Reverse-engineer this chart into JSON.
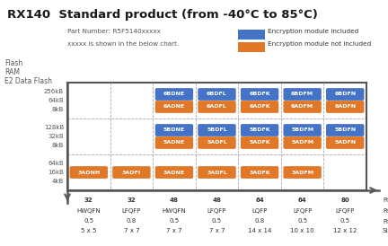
{
  "title": "RX140  Standard product (from -40°C to 85°C)",
  "part_number_line1": "Part Number: R5F5140xxxxx",
  "part_number_line2": "xxxxx is shown in the below chart.",
  "legend_blue_text": "Encryption module included",
  "legend_orange_text": "Encryption module not included",
  "blue_color": "#4472C4",
  "orange_color": "#E07828",
  "bg_color": "#FFFFFF",
  "grid_color": "#AAAAAA",
  "row_labels": [
    [
      "256kB",
      "64kB",
      "8kB"
    ],
    [
      "128kB",
      "32kB",
      "8kB"
    ],
    [
      "64kB",
      "16kB",
      "4kB"
    ]
  ],
  "col_labels": [
    {
      "pins": "32",
      "pkg": "HWQFN",
      "pitch": "0.5",
      "size": "5 x 5"
    },
    {
      "pins": "32",
      "pkg": "LFQFP",
      "pitch": "0.8",
      "size": "7 x 7"
    },
    {
      "pins": "48",
      "pkg": "HWQFN",
      "pitch": "0.5",
      "size": "7 x 7"
    },
    {
      "pins": "48",
      "pkg": "LFQFP",
      "pitch": "0.5",
      "size": "7 x 7"
    },
    {
      "pins": "64",
      "pkg": "LQFP",
      "pitch": "0.8",
      "size": "14 x 14"
    },
    {
      "pins": "64",
      "pkg": "LFQFP",
      "pitch": "0.5",
      "size": "10 x 10"
    },
    {
      "pins": "80",
      "pkg": "LFQFP",
      "pitch": "0.5",
      "size": "12 x 12"
    }
  ],
  "col_footer_labels": [
    "Pins",
    "Packages",
    "Pitch(mm)",
    "Sizes(mm)"
  ],
  "cells": [
    {
      "row": 0,
      "col": 2,
      "text": "6BDNE",
      "color": "blue"
    },
    {
      "row": 0,
      "col": 3,
      "text": "6BDFL",
      "color": "blue"
    },
    {
      "row": 0,
      "col": 4,
      "text": "6BDFK",
      "color": "blue"
    },
    {
      "row": 0,
      "col": 5,
      "text": "6BDFM",
      "color": "blue"
    },
    {
      "row": 0,
      "col": 6,
      "text": "6BDFN",
      "color": "blue"
    },
    {
      "row": 0,
      "col": 2,
      "text": "6ADNE",
      "color": "orange"
    },
    {
      "row": 0,
      "col": 3,
      "text": "6ADFL",
      "color": "orange"
    },
    {
      "row": 0,
      "col": 4,
      "text": "6ADFK",
      "color": "orange"
    },
    {
      "row": 0,
      "col": 5,
      "text": "6ADFM",
      "color": "orange"
    },
    {
      "row": 0,
      "col": 6,
      "text": "6ADFN",
      "color": "orange"
    },
    {
      "row": 1,
      "col": 2,
      "text": "5BDNE",
      "color": "blue"
    },
    {
      "row": 1,
      "col": 3,
      "text": "5BDFL",
      "color": "blue"
    },
    {
      "row": 1,
      "col": 4,
      "text": "5BDFK",
      "color": "blue"
    },
    {
      "row": 1,
      "col": 5,
      "text": "5BDFM",
      "color": "blue"
    },
    {
      "row": 1,
      "col": 6,
      "text": "5BDFN",
      "color": "blue"
    },
    {
      "row": 1,
      "col": 2,
      "text": "5ADNE",
      "color": "orange"
    },
    {
      "row": 1,
      "col": 3,
      "text": "5ADFL",
      "color": "orange"
    },
    {
      "row": 1,
      "col": 4,
      "text": "5ADFK",
      "color": "orange"
    },
    {
      "row": 1,
      "col": 5,
      "text": "5ADFM",
      "color": "orange"
    },
    {
      "row": 1,
      "col": 6,
      "text": "5ADFN",
      "color": "orange"
    },
    {
      "row": 2,
      "col": 0,
      "text": "3ADNH",
      "color": "orange"
    },
    {
      "row": 2,
      "col": 1,
      "text": "3ADFI",
      "color": "orange"
    },
    {
      "row": 2,
      "col": 2,
      "text": "3ADNE",
      "color": "orange"
    },
    {
      "row": 2,
      "col": 3,
      "text": "3ADFL",
      "color": "orange"
    },
    {
      "row": 2,
      "col": 4,
      "text": "3ADFK",
      "color": "orange"
    },
    {
      "row": 2,
      "col": 5,
      "text": "3ADFM",
      "color": "orange"
    }
  ]
}
